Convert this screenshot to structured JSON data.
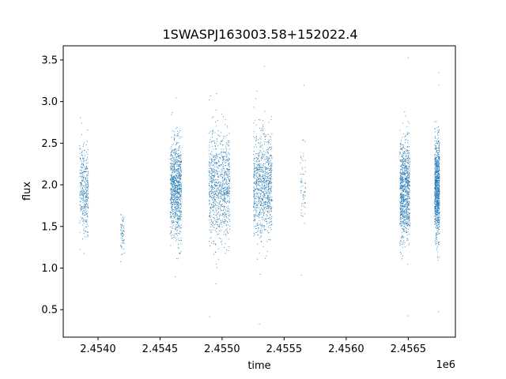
{
  "chart_data": {
    "type": "scatter",
    "title": "1SWASPJ163003.58+152022.4",
    "xlabel": "time",
    "ylabel": "flux",
    "x_offset_label": "1e6",
    "xlim": [
      2.45372,
      2.45688
    ],
    "ylim": [
      0.17,
      3.67
    ],
    "x_ticks": [
      2.454,
      2.4545,
      2.455,
      2.4555,
      2.456,
      2.4565
    ],
    "x_tick_labels": [
      "2.4540",
      "2.4545",
      "2.4550",
      "2.4555",
      "2.4560",
      "2.4565"
    ],
    "y_ticks": [
      0.5,
      1.0,
      1.5,
      2.0,
      2.5,
      3.0,
      3.5
    ],
    "y_tick_labels": [
      "0.5",
      "1.0",
      "1.5",
      "2.0",
      "2.5",
      "3.0",
      "3.5"
    ],
    "grid": false,
    "marker_color": "#1f77b4",
    "series": [
      {
        "observing_seasons": [
          {
            "x_start": 2.45385,
            "x_end": 2.45392,
            "y_center": 1.95,
            "y_spread": 0.55,
            "y_min": 1.18,
            "y_max": 2.81,
            "density": "medium"
          },
          {
            "x_start": 2.45418,
            "x_end": 2.45421,
            "y_center": 1.4,
            "y_spread": 0.3,
            "y_min": 1.08,
            "y_max": 1.65,
            "density": "sparse"
          },
          {
            "x_start": 2.45458,
            "x_end": 2.45467,
            "y_center": 1.95,
            "y_spread": 0.65,
            "y_min": 0.9,
            "y_max": 3.05,
            "density": "dense"
          },
          {
            "x_start": 2.45489,
            "x_end": 2.45506,
            "y_center": 2.0,
            "y_spread": 0.7,
            "y_min": 0.42,
            "y_max": 3.1,
            "density": "dense"
          },
          {
            "x_start": 2.45525,
            "x_end": 2.4554,
            "y_center": 2.0,
            "y_spread": 0.7,
            "y_min": 0.33,
            "y_max": 3.43,
            "density": "dense"
          },
          {
            "x_start": 2.45563,
            "x_end": 2.45567,
            "y_center": 2.0,
            "y_spread": 0.55,
            "y_min": 0.92,
            "y_max": 3.2,
            "density": "sparse"
          },
          {
            "x_start": 2.45643,
            "x_end": 2.45651,
            "y_center": 1.95,
            "y_spread": 0.65,
            "y_min": 0.43,
            "y_max": 3.53,
            "density": "dense"
          },
          {
            "x_start": 2.45671,
            "x_end": 2.45675,
            "y_center": 1.95,
            "y_spread": 0.65,
            "y_min": 0.48,
            "y_max": 3.35,
            "density": "dense"
          }
        ]
      }
    ]
  }
}
